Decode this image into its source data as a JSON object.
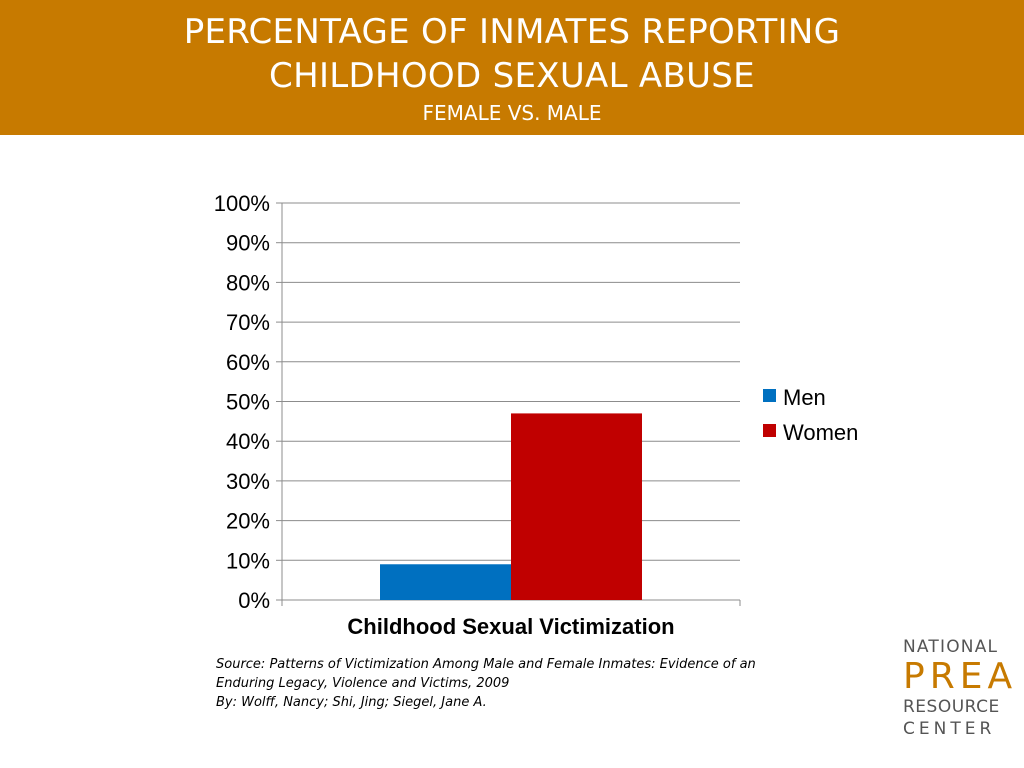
{
  "header": {
    "title_line1": "PERCENTAGE OF INMATES REPORTING",
    "title_line2": "CHILDHOOD SEXUAL ABUSE",
    "subtitle": "FEMALE VS. MALE"
  },
  "colors": {
    "header_bg": "#c77a00",
    "men": "#0070c0",
    "women": "#c00000"
  },
  "chart_data": {
    "type": "bar",
    "categories": [
      "Childhood Sexual Victimization"
    ],
    "series": [
      {
        "name": "Men",
        "values": [
          9
        ]
      },
      {
        "name": "Women",
        "values": [
          47
        ]
      }
    ],
    "ylim": [
      0,
      100
    ],
    "yticks": [
      "0%",
      "10%",
      "20%",
      "30%",
      "40%",
      "50%",
      "60%",
      "70%",
      "80%",
      "90%",
      "100%"
    ],
    "grid": true,
    "legend_position": "right"
  },
  "source": {
    "line1": "Source: Patterns of Victimization Among Male and Female Inmates: Evidence of an",
    "line2": "Enduring Legacy, Violence and Victims, 2009",
    "line3": "By: Wolff, Nancy; Shi, Jing; Siegel, Jane A."
  },
  "logo": {
    "line1": "NATIONAL",
    "line2": "PREA",
    "line3": "RESOURCE",
    "line4": "CENTER"
  }
}
